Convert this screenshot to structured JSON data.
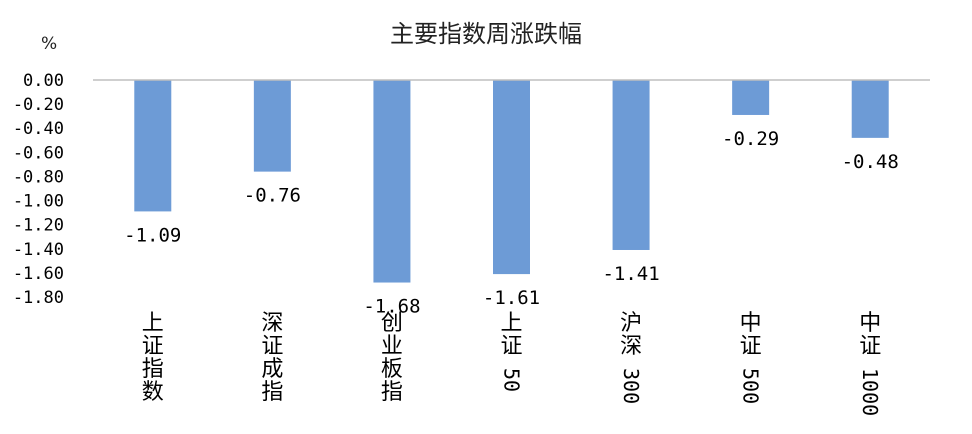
{
  "chart_data": {
    "type": "bar",
    "title": "主要指数周涨跌幅",
    "ylabel": "%",
    "xlabel": "",
    "categories": [
      "上证指数",
      "深证成指",
      "创业板指",
      "上证50",
      "沪深300",
      "中证500",
      "中证1000"
    ],
    "values": [
      -1.09,
      -0.76,
      -1.68,
      -1.61,
      -1.41,
      -0.29,
      -0.48
    ],
    "data_labels": [
      "-1.09",
      "-0.76",
      "-1.68",
      "-1.61",
      "-1.41",
      "-0.29",
      "-0.48"
    ],
    "yticks": [
      "0.00",
      "-0.20",
      "-0.40",
      "-0.60",
      "-0.80",
      "-1.00",
      "-1.20",
      "-1.40",
      "-1.60",
      "-1.80"
    ],
    "ylim": [
      -1.8,
      0
    ],
    "grid": false,
    "legend": "none",
    "bar_color": "#6d9bd6",
    "axis_color": "#bfbfbf"
  }
}
